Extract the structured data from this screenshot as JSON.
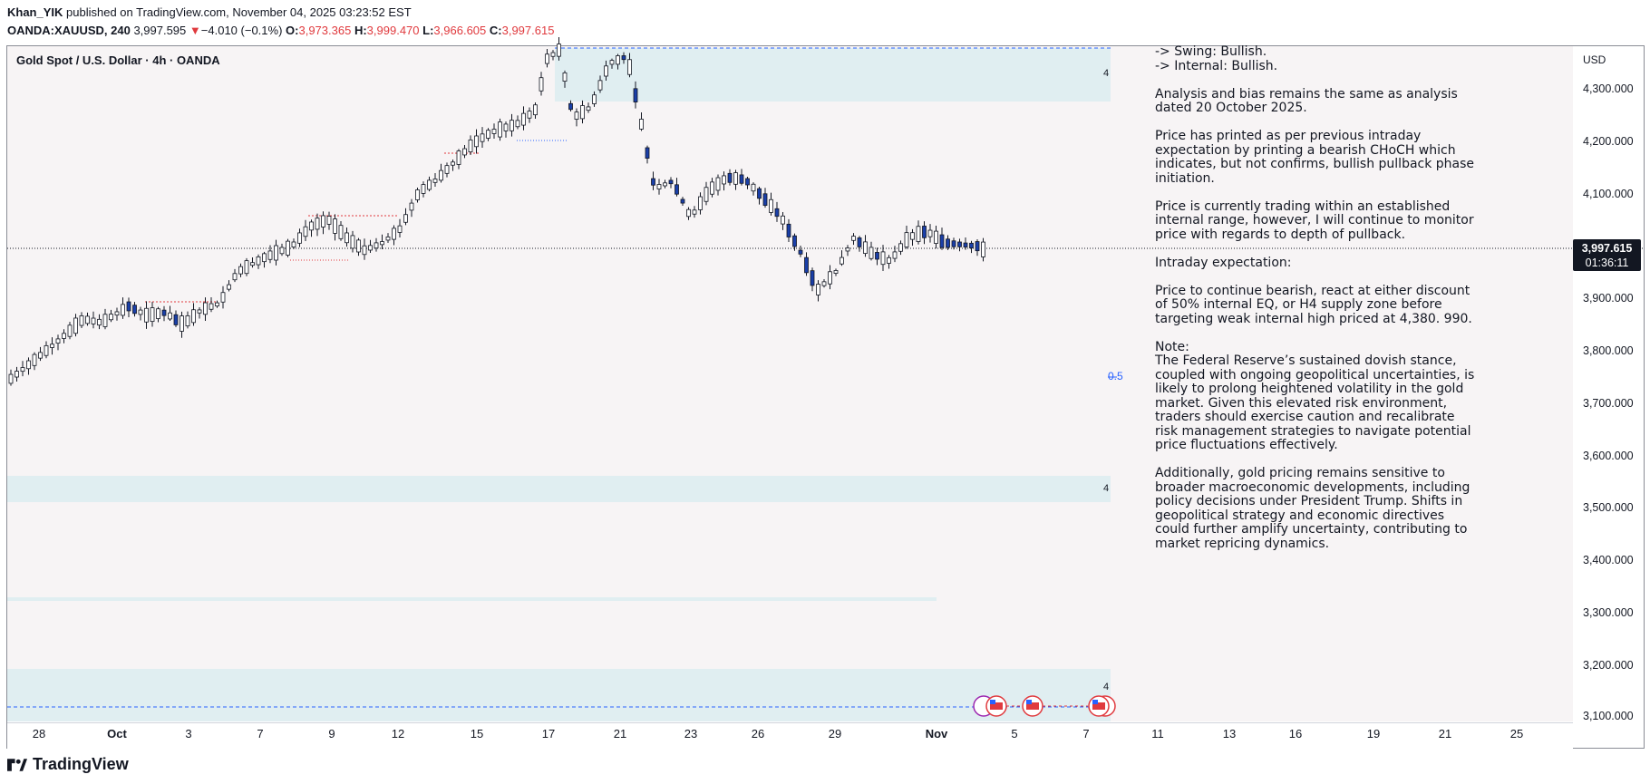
{
  "header": {
    "author": "Khan_YIK",
    "published": "published on TradingView.com, November 04, 2025 03:23:52 EST",
    "symbol": "OANDA:XAUUSD, 240",
    "last": "3,997.595",
    "change_arrow": "▼",
    "change": "−4.010 (−0.1%)",
    "open_label": "O:",
    "open": "3,973.365",
    "high_label": "H:",
    "high": "3,999.470",
    "low_label": "L:",
    "low": "3,966.605",
    "close_label": "C:",
    "close": "3,997.615"
  },
  "chart": {
    "title": "Gold Spot / U.S. Dollar · 4h · OANDA",
    "currency": "USD",
    "price_tag": {
      "price": "3,997.615",
      "countdown": "01:36:11"
    },
    "y_ticks": [
      "4,300.000",
      "4,200.000",
      "4,100.000",
      "3,900.000",
      "3,800.000",
      "3,700.000",
      "3,600.000",
      "3,500.000",
      "3,400.000",
      "3,300.000",
      "3,200.000",
      "3,100.000"
    ],
    "x_ticks": [
      "28",
      "Oct",
      "3",
      "7",
      "9",
      "12",
      "15",
      "17",
      "21",
      "23",
      "26",
      "29",
      "Nov",
      "5",
      "7",
      "11",
      "13",
      "16",
      "19",
      "21",
      "25"
    ],
    "zone_labels": [
      "4",
      "4",
      "4"
    ],
    "fib_label": "0.5",
    "colors": {
      "up": "#ffffff",
      "down": "#1a3fa8",
      "wick": "#131722",
      "zone": "#e0eef1",
      "level": "#2962ff",
      "bos": "#e03a3e"
    }
  },
  "analysis": {
    "swing": "-> Swing:  Bullish.",
    "internal": "-> Internal:  Bullish.",
    "p1": "Analysis and bias remains the same as analysis dated 20 October 2025.",
    "p2": "Price has printed as per previous intraday expectation by printing a bearish CHoCH which indicates, but not confirms, bullish pullback phase initiation.",
    "p3": "Price is currently trading within an established internal range, however, I will continue to monitor price with regards to depth of pullback.",
    "p4": "Intraday expectation:",
    "p5": "Price to continue bearish, react at either discount of 50% internal EQ, or H4 supply zone before targeting weak internal high priced at 4,380. 990.",
    "p6_title": "Note:",
    "p6": "The Federal Reserve’s sustained dovish stance, coupled with ongoing geopolitical uncertainties, is likely to prolong heightened volatility in the gold market. Given this elevated risk environment, traders should exercise caution and recalibrate risk management strategies to navigate potential price fluctuations effectively.",
    "p7": "Additionally, gold pricing remains sensitive to broader macroeconomic developments, including policy decisions under President Trump. Shifts in geopolitical strategy and economic directives could further amplify uncertainty, contributing to market repricing dynamics."
  },
  "footer": {
    "brand": "TradingView"
  }
}
